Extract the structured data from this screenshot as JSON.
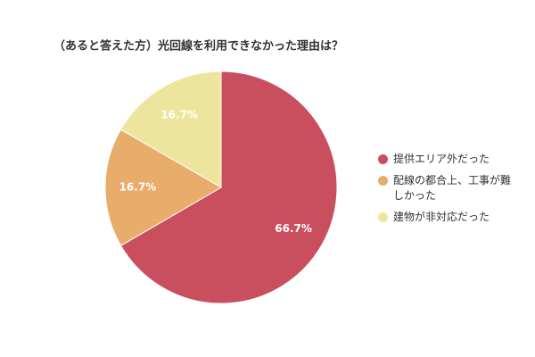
{
  "chart_data": {
    "type": "pie",
    "title": "（あると答えた方）光回線を利用できなかった理由は？",
    "categories": [
      "提供エリア外だった",
      "配線の都合上、工事が難しかった",
      "建物が非対応だった"
    ],
    "values": [
      66.7,
      16.7,
      16.7
    ],
    "value_labels": [
      "66.7%",
      "16.7%",
      "16.7%"
    ],
    "colors": [
      "#c94f5e",
      "#e8ac6b",
      "#ede59d"
    ],
    "legend": "right"
  }
}
